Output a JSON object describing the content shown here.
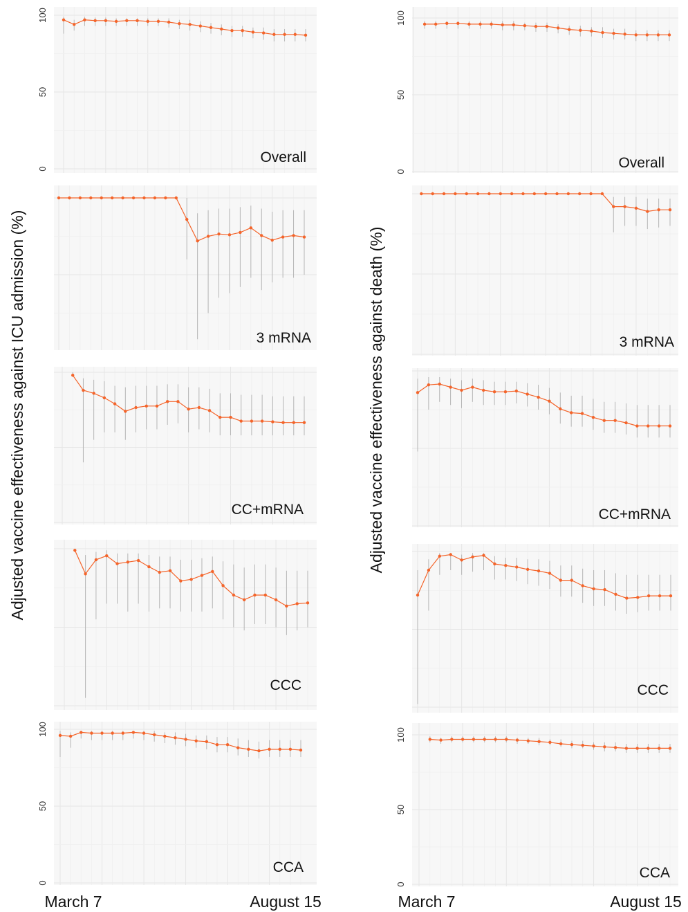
{
  "y_labels": {
    "left": "Adjusted vaccine effectiveness against ICU admission (%)",
    "right": "Adjusted vaccine effectiveness against death (%)"
  },
  "x_tick_labels": {
    "start": "March 7",
    "end": "August 15"
  },
  "colors": {
    "series": "#f4642a",
    "ci": "#b5b5b5",
    "panel": "#f7f7f7",
    "grid": "#e6e6e6"
  },
  "chart_data": [
    {
      "type": "line",
      "column": "left",
      "title": "Overall",
      "ylim": [
        0,
        100
      ],
      "y_ticks": [
        0,
        50,
        100
      ],
      "x_range": [
        1,
        24
      ],
      "series": [
        {
          "x": [
            1,
            2,
            3,
            4,
            5,
            6,
            7,
            8,
            9,
            10,
            11,
            12,
            13,
            14,
            15,
            16,
            17,
            18,
            19,
            20,
            21,
            22,
            23,
            24
          ],
          "y": [
            97,
            94,
            97,
            96.5,
            96.5,
            96,
            96.5,
            96.5,
            96,
            96,
            95.5,
            94.5,
            94,
            93,
            92,
            91,
            90,
            90,
            89,
            88.5,
            87.5,
            87.5,
            87.5,
            87
          ],
          "lower": [
            88,
            90,
            93,
            93,
            93,
            93,
            93,
            93,
            93,
            93,
            92,
            91,
            90,
            89,
            88,
            87,
            86,
            86,
            85,
            84,
            83,
            83,
            83,
            83
          ],
          "upper": [
            99,
            97,
            99,
            98.5,
            98.5,
            98,
            98,
            98,
            98,
            98,
            98,
            97,
            97,
            96,
            95,
            94,
            93,
            93,
            92,
            92,
            91,
            91,
            91,
            91
          ]
        }
      ]
    },
    {
      "type": "line",
      "column": "right",
      "title": "Overall",
      "ylim": [
        0,
        100
      ],
      "y_ticks": [
        0,
        50,
        100
      ],
      "x_range": [
        1,
        24
      ],
      "series": [
        {
          "x": [
            2,
            3,
            4,
            5,
            6,
            7,
            8,
            9,
            10,
            11,
            12,
            13,
            14,
            15,
            16,
            17,
            18,
            19,
            20,
            21,
            22,
            23,
            24
          ],
          "y": [
            96,
            96,
            96.5,
            96.5,
            96,
            96,
            96,
            95.5,
            95.5,
            95,
            94.5,
            94.5,
            93.5,
            92.5,
            92,
            91.5,
            90.5,
            90,
            89.5,
            89,
            89,
            89,
            89
          ],
          "lower": [
            93,
            93,
            93,
            93,
            93,
            93,
            93,
            92,
            92,
            92,
            91,
            91,
            90,
            89,
            88,
            88,
            87,
            86,
            86,
            85,
            85,
            85,
            85
          ],
          "upper": [
            98,
            98,
            98,
            98,
            98,
            98,
            98,
            98,
            98,
            97,
            97,
            97,
            96,
            95,
            95,
            94,
            94,
            93,
            93,
            92,
            92,
            92,
            92
          ]
        }
      ]
    },
    {
      "type": "line",
      "column": "left",
      "title": "3 mRNA",
      "x_range": [
        1,
        24
      ],
      "series": [
        {
          "x": [
            1,
            2,
            3,
            4,
            5,
            6,
            7,
            8,
            9,
            10,
            11,
            12,
            13,
            14,
            15,
            16,
            17,
            18,
            19,
            20,
            21,
            22,
            23,
            24
          ],
          "y": [
            100,
            100,
            100,
            100,
            100,
            100,
            100,
            100,
            100,
            100,
            100,
            100,
            86,
            72,
            75,
            76.5,
            76,
            77.5,
            80.5,
            75.5,
            72.5,
            74.5,
            75.5,
            74.5
          ],
          "lower": [
            100,
            100,
            100,
            100,
            100,
            100,
            100,
            100,
            100,
            100,
            100,
            100,
            60,
            8,
            25,
            35,
            38,
            42,
            48,
            40,
            45,
            48,
            48,
            50
          ],
          "upper": [
            100,
            100,
            100,
            100,
            100,
            100,
            100,
            100,
            100,
            100,
            100,
            100,
            100,
            90,
            92,
            93,
            93,
            94,
            95,
            93,
            91,
            92,
            92,
            92
          ]
        }
      ]
    },
    {
      "type": "line",
      "column": "right",
      "title": "3 mRNA",
      "x_range": [
        1,
        24
      ],
      "series": [
        {
          "x": [
            2,
            3,
            4,
            5,
            6,
            7,
            8,
            9,
            10,
            11,
            12,
            13,
            14,
            15,
            16,
            17,
            18,
            19,
            20,
            21,
            22,
            23,
            24
          ],
          "y": [
            100,
            100,
            100,
            100,
            100,
            100,
            100,
            100,
            100,
            100,
            100,
            100,
            100,
            100,
            100,
            100,
            100,
            92,
            92,
            91,
            89,
            90,
            90
          ],
          "lower": [
            100,
            100,
            100,
            100,
            100,
            100,
            100,
            100,
            100,
            100,
            100,
            100,
            100,
            100,
            100,
            100,
            100,
            76,
            80,
            80,
            78,
            79,
            80
          ],
          "upper": [
            100,
            100,
            100,
            100,
            100,
            100,
            100,
            100,
            100,
            100,
            100,
            100,
            100,
            100,
            100,
            100,
            100,
            98,
            98,
            98,
            97,
            97,
            97
          ]
        }
      ]
    },
    {
      "type": "line",
      "column": "left",
      "title": "CC+mRNA",
      "x_range": [
        1,
        24
      ],
      "series": [
        {
          "x": [
            2,
            3,
            4,
            5,
            6,
            7,
            8,
            9,
            10,
            11,
            12,
            13,
            14,
            15,
            16,
            17,
            18,
            19,
            20,
            21,
            22,
            23,
            24
          ],
          "y": [
            98,
            88,
            86,
            83,
            79,
            74,
            76.5,
            77.5,
            77.5,
            80.5,
            80.5,
            75.5,
            76.5,
            74.5,
            70,
            70,
            67.5,
            67.5,
            67.5,
            67,
            66.5,
            66.5,
            66.5
          ],
          "lower": [
            98,
            40,
            55,
            60,
            60,
            55,
            60,
            62,
            62,
            65,
            66,
            60,
            62,
            60,
            58,
            58,
            58,
            58,
            58,
            58,
            58,
            58,
            58
          ],
          "upper": [
            100,
            96,
            95,
            94,
            91,
            90,
            91,
            91,
            91,
            92,
            92,
            90,
            90,
            89,
            86,
            86,
            85,
            85,
            85,
            84,
            84,
            84,
            84
          ]
        }
      ]
    },
    {
      "type": "line",
      "column": "right",
      "title": "CC+mRNA",
      "x_range": [
        1,
        24
      ],
      "series": [
        {
          "x": [
            1,
            2,
            3,
            4,
            5,
            6,
            7,
            8,
            9,
            10,
            11,
            12,
            13,
            14,
            15,
            16,
            17,
            18,
            19,
            20,
            21,
            22,
            23,
            24
          ],
          "y": [
            86,
            91,
            91.5,
            89.5,
            87.5,
            89.5,
            87.5,
            86.5,
            86.5,
            87,
            85,
            83,
            80.5,
            75.5,
            73,
            72.5,
            70,
            68,
            68,
            66.5,
            64.5,
            64.5,
            64.5,
            64.5
          ],
          "lower": [
            48,
            75,
            80,
            78,
            76,
            80,
            78,
            78,
            78,
            79,
            77,
            75,
            72,
            66,
            64,
            64,
            62,
            60,
            60,
            59,
            57,
            57,
            57,
            57
          ],
          "upper": [
            95,
            96,
            96,
            95,
            94,
            95,
            94,
            93,
            93,
            93,
            92,
            91,
            89,
            86,
            84,
            84,
            82,
            80,
            80,
            79,
            78,
            78,
            78,
            78
          ]
        }
      ]
    },
    {
      "type": "line",
      "column": "left",
      "title": "CCC",
      "x_range": [
        1,
        24
      ],
      "series": [
        {
          "x": [
            2,
            3,
            4,
            5,
            6,
            7,
            8,
            9,
            10,
            11,
            12,
            13,
            14,
            15,
            16,
            17,
            18,
            19,
            20,
            21,
            22,
            23,
            24
          ],
          "y": [
            99,
            84,
            93,
            95.5,
            90.5,
            91.5,
            92.5,
            88.5,
            85,
            86,
            79.5,
            80.5,
            83,
            85.5,
            76.5,
            70.5,
            67.5,
            70.5,
            70.5,
            67.5,
            63.5,
            65,
            65.5
          ],
          "lower": [
            99,
            5,
            55,
            65,
            65,
            60,
            65,
            60,
            62,
            62,
            60,
            60,
            60,
            62,
            55,
            50,
            48,
            52,
            52,
            50,
            45,
            48,
            50
          ],
          "upper": [
            100,
            96,
            98,
            99,
            97,
            97,
            97,
            96,
            95,
            95,
            93,
            93,
            94,
            95,
            92,
            90,
            88,
            90,
            90,
            88,
            86,
            86,
            86
          ]
        }
      ]
    },
    {
      "type": "line",
      "column": "right",
      "title": "CCC",
      "x_range": [
        1,
        24
      ],
      "series": [
        {
          "x": [
            1,
            2,
            3,
            4,
            5,
            6,
            7,
            8,
            9,
            10,
            11,
            12,
            13,
            14,
            15,
            16,
            17,
            18,
            19,
            20,
            21,
            22,
            23,
            24
          ],
          "y": [
            72,
            88,
            97,
            98,
            94.5,
            96.5,
            97.5,
            92,
            91,
            90,
            88.5,
            87.5,
            86,
            81.5,
            81.5,
            78,
            76,
            75.5,
            72.5,
            70,
            70.5,
            71.5,
            71.5,
            71.5
          ],
          "lower": [
            2,
            62,
            85,
            88,
            85,
            87,
            88,
            82,
            82,
            81,
            79,
            78,
            76,
            71,
            71,
            67,
            65,
            65,
            62,
            60,
            61,
            62,
            62,
            62
          ],
          "upper": [
            88,
            95,
            99,
            99,
            98,
            99,
            99,
            97,
            96,
            96,
            95,
            95,
            94,
            91,
            91,
            89,
            88,
            88,
            86,
            85,
            85,
            85,
            85,
            85
          ]
        }
      ]
    },
    {
      "type": "line",
      "column": "left",
      "title": "CCA",
      "ylim": [
        0,
        100
      ],
      "y_ticks": [
        0,
        50,
        100
      ],
      "x_range": [
        1,
        24
      ],
      "series": [
        {
          "x": [
            1,
            2,
            3,
            4,
            5,
            6,
            7,
            8,
            9,
            10,
            11,
            12,
            13,
            14,
            15,
            16,
            17,
            18,
            19,
            20,
            21,
            22,
            23,
            24
          ],
          "y": [
            96,
            95.5,
            98,
            97.5,
            97.5,
            97.5,
            97.5,
            98,
            97.5,
            96.5,
            95.5,
            94.5,
            93.5,
            92.5,
            92,
            90,
            90,
            88,
            87,
            86,
            87,
            87,
            87,
            86.5
          ],
          "lower": [
            82,
            88,
            94,
            93,
            93,
            93,
            93,
            94,
            93,
            92,
            91,
            90,
            89,
            88,
            87,
            85,
            85,
            83,
            82,
            81,
            82,
            82,
            82,
            82
          ],
          "upper": [
            99,
            98,
            99,
            99,
            99,
            99,
            99,
            99,
            99,
            99,
            98,
            98,
            97,
            96,
            96,
            95,
            95,
            94,
            93,
            92,
            93,
            93,
            93,
            93
          ]
        }
      ]
    },
    {
      "type": "line",
      "column": "right",
      "title": "CCA",
      "ylim": [
        0,
        100
      ],
      "y_ticks": [
        0,
        50,
        100
      ],
      "x_range": [
        1,
        24
      ],
      "series": [
        {
          "x": [
            2,
            3,
            4,
            5,
            6,
            7,
            8,
            9,
            10,
            11,
            12,
            13,
            14,
            15,
            16,
            17,
            18,
            19,
            20,
            21,
            22,
            23,
            24
          ],
          "y": [
            97,
            96.5,
            97,
            97,
            97,
            97,
            97,
            97,
            96.5,
            96,
            95.5,
            95,
            94,
            93.5,
            93,
            92.5,
            92,
            91.5,
            91,
            91,
            91,
            91,
            91
          ],
          "lower": [
            95,
            94,
            95,
            95,
            95,
            95,
            95,
            95,
            94,
            94,
            93,
            93,
            92,
            91,
            91,
            90,
            89,
            89,
            88,
            88,
            88,
            88,
            88
          ],
          "upper": [
            99,
            98,
            99,
            99,
            99,
            99,
            99,
            99,
            98,
            98,
            98,
            97,
            97,
            96,
            96,
            95,
            95,
            95,
            94,
            94,
            94,
            94,
            94
          ]
        }
      ]
    }
  ]
}
